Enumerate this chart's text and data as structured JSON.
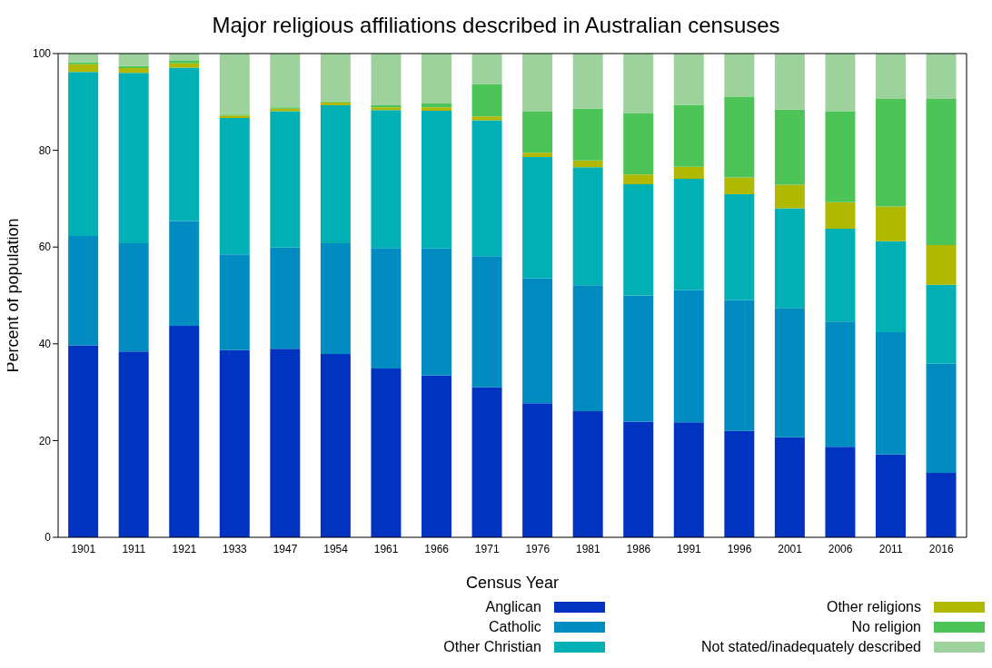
{
  "chart_data": {
    "type": "bar",
    "title": "Major religious affiliations described in Australian censuses",
    "xlabel": "Census Year",
    "ylabel": "Percent of population",
    "stacked": true,
    "categories": [
      "1901",
      "1911",
      "1921",
      "1933",
      "1947",
      "1954",
      "1961",
      "1966",
      "1971",
      "1976",
      "1981",
      "1986",
      "1991",
      "1996",
      "2001",
      "2006",
      "2011",
      "2016"
    ],
    "series": [
      {
        "name": "Anglican",
        "color": "#0033c0",
        "values": [
          39.7,
          38.4,
          43.7,
          38.7,
          39.0,
          37.9,
          34.9,
          33.5,
          31.0,
          27.7,
          26.1,
          23.9,
          23.8,
          22.0,
          20.7,
          18.7,
          17.1,
          13.3
        ]
      },
      {
        "name": "Catholic",
        "color": "#008cc0",
        "values": [
          22.6,
          22.4,
          21.7,
          19.8,
          20.9,
          22.9,
          24.9,
          26.2,
          27.1,
          25.8,
          26.0,
          26.1,
          27.3,
          27.0,
          26.7,
          25.9,
          25.3,
          22.6
        ]
      },
      {
        "name": "Other Christian",
        "color": "#00b0b4",
        "values": [
          33.9,
          35.2,
          31.7,
          28.2,
          28.2,
          28.5,
          28.5,
          28.5,
          28.1,
          25.1,
          24.4,
          23.0,
          23.0,
          21.9,
          20.6,
          19.2,
          18.8,
          16.3
        ]
      },
      {
        "name": "Other religions",
        "color": "#b0b800",
        "values": [
          1.6,
          1.0,
          0.9,
          0.5,
          0.5,
          0.6,
          0.6,
          0.7,
          0.8,
          0.9,
          1.4,
          2.0,
          2.5,
          3.5,
          4.9,
          5.5,
          7.2,
          8.2
        ]
      },
      {
        "name": "No religion",
        "color": "#4cc458",
        "values": [
          0.4,
          0.4,
          0.5,
          0.2,
          0.3,
          0.2,
          0.4,
          0.8,
          6.7,
          8.5,
          10.7,
          12.6,
          12.8,
          16.6,
          15.5,
          18.8,
          22.2,
          30.2
        ]
      },
      {
        "name": "Not stated/inadequately described",
        "color": "#9ed29c",
        "values": [
          1.8,
          2.6,
          1.5,
          12.6,
          11.1,
          9.9,
          10.7,
          10.3,
          6.3,
          12.0,
          11.4,
          12.4,
          10.6,
          9.0,
          11.6,
          11.9,
          9.4,
          9.4
        ]
      }
    ],
    "ylim": [
      0,
      100
    ],
    "yticks": [
      0,
      20,
      40,
      60,
      80,
      100
    ],
    "legend": "bottom"
  }
}
